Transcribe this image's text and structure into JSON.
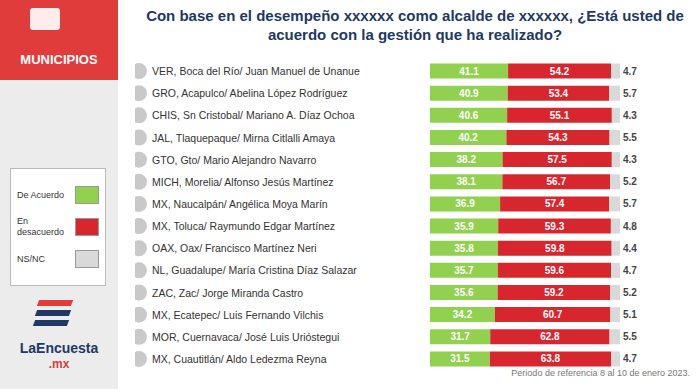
{
  "chart_data": {
    "type": "bar",
    "orientation": "horizontal",
    "stacked": true,
    "data_labels": true,
    "tick_labels": "y",
    "grid": false,
    "legend": "left",
    "title": "Con base en el desempeño xxxxxx como alcalde de xxxxxx, ¿Está usted de acuerdo con la gestión que ha realizado?",
    "subtitle": "Periodo de referencia 8 al 10 de enero 2023.",
    "categories": [
      "VER, Boca del Río/ Juan Manuel de Unanue",
      "GRO, Acapulco/ Abelina López Rodríguez",
      "CHIS, Sn Cristobal/ Mariano A. Díaz Ochoa",
      "JAL, Tlaquepaque/ Mirna Citlalli Amaya",
      "GTO, Gto/ Mario Alejandro Navarro",
      "MICH, Morelia/ Alfonso Jesús Martínez",
      "MX, Naucalpán/ Angélica Moya Marín",
      "MX, Toluca/ Raymundo Edgar Martínez",
      "OAX, Oax/ Francisco Martínez Neri",
      "NL, Guadalupe/ María Cristina Díaz Salazar",
      "ZAC, Zac/ Jorge Miranda Castro",
      "MX, Ecatepec/ Luis Fernando Vilchis",
      "MOR, Cuernavaca/ José Luis Urióstegui",
      "MX, Cuautitlán/ Aldo Ledezma Reyna"
    ],
    "series": [
      {
        "name": "De Acuerdo",
        "color": "#92d050",
        "values": [
          41.1,
          40.9,
          40.6,
          40.2,
          38.2,
          38.1,
          36.9,
          35.9,
          35.8,
          35.7,
          35.6,
          34.2,
          31.7,
          31.5
        ]
      },
      {
        "name": "En desacuerdo",
        "color": "#d7262e",
        "values": [
          54.2,
          53.4,
          55.1,
          54.3,
          57.5,
          56.7,
          57.4,
          59.3,
          59.8,
          59.6,
          59.2,
          60.7,
          62.8,
          63.8
        ]
      },
      {
        "name": "NS/NC",
        "color": "#d9d9d9",
        "values": [
          4.7,
          5.7,
          4.3,
          5.5,
          4.3,
          5.2,
          5.7,
          4.8,
          4.4,
          4.7,
          5.2,
          5.1,
          5.5,
          4.7
        ]
      }
    ],
    "xlim": [
      0,
      100
    ]
  },
  "panel": {
    "label": "MUNICIPIOS",
    "logo": "LaEncuesta",
    "logo_suffix": ".mx"
  }
}
